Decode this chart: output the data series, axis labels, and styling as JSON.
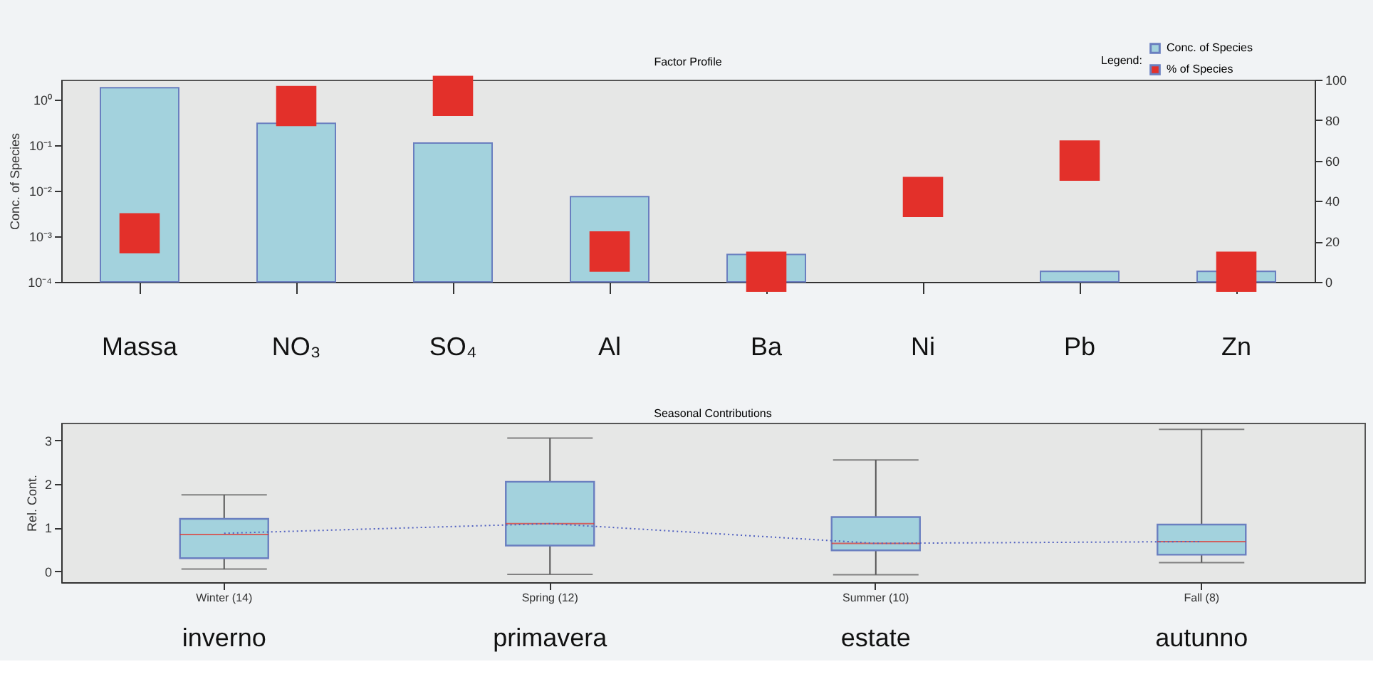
{
  "chart_data": [
    {
      "type": "bar",
      "title": "Factor Profile",
      "ylabel": "Conc. of Species",
      "legend_title": "Legend:",
      "legend": "top right",
      "log": "y",
      "grid": false,
      "categories": [
        "Massa",
        "NO₃",
        "SO₄",
        "Al",
        "Ba",
        "Ni",
        "Pb",
        "Zn"
      ],
      "ylim": [
        0.0001,
        2.7
      ],
      "yticks": [
        {
          "value": 0.0001,
          "label": "10⁻⁴"
        },
        {
          "value": 0.001,
          "label": "10⁻³"
        },
        {
          "value": 0.01,
          "label": "10⁻²"
        },
        {
          "value": 0.1,
          "label": "10⁻¹"
        },
        {
          "value": 1,
          "label": "10⁰"
        }
      ],
      "y2lim": [
        0,
        100
      ],
      "y2ticks": [
        0,
        20,
        40,
        60,
        80,
        100
      ],
      "series": [
        {
          "name": "Conc. of Species",
          "type": "bar",
          "color": "#a3d2dd",
          "values": [
            1.8,
            0.3,
            0.11,
            0.0074,
            0.0004,
            null,
            0.00017,
            0.00017
          ]
        },
        {
          "name": "% of Species",
          "type": "scatter",
          "marker": "square",
          "axis": "y2",
          "color": "#e3302a",
          "values": [
            24,
            87,
            92,
            15,
            5,
            42,
            60,
            5
          ]
        }
      ]
    },
    {
      "type": "box",
      "title": "Seasonal Contributions",
      "ylabel": "Rel. Cont.",
      "grid": false,
      "categories": [
        "Winter (14)",
        "Spring (12)",
        "Summer (10)",
        "Fall (8)"
      ],
      "ylim": [
        -0.25,
        3.4
      ],
      "yticks": [
        0,
        1,
        2,
        3
      ],
      "series": [
        {
          "type": "box",
          "color": "#a3d2dd",
          "boxes": [
            {
              "low": 0.05,
              "q1": 0.3,
              "median": 0.84,
              "q3": 1.2,
              "high": 1.75
            },
            {
              "low": -0.07,
              "q1": 0.59,
              "median": 1.09,
              "q3": 2.05,
              "high": 3.05
            },
            {
              "low": -0.08,
              "q1": 0.48,
              "median": 0.64,
              "q3": 1.24,
              "high": 2.55
            },
            {
              "low": 0.2,
              "q1": 0.38,
              "median": 0.68,
              "q3": 1.07,
              "high": 3.25
            }
          ]
        },
        {
          "type": "line",
          "color": "#5060c0",
          "line_style": "dotted",
          "marker": "none",
          "values": [
            0.87,
            1.09,
            0.64,
            0.68
          ]
        }
      ],
      "annotations": [
        "inverno",
        "primavera",
        "estate",
        "autunno"
      ]
    }
  ]
}
